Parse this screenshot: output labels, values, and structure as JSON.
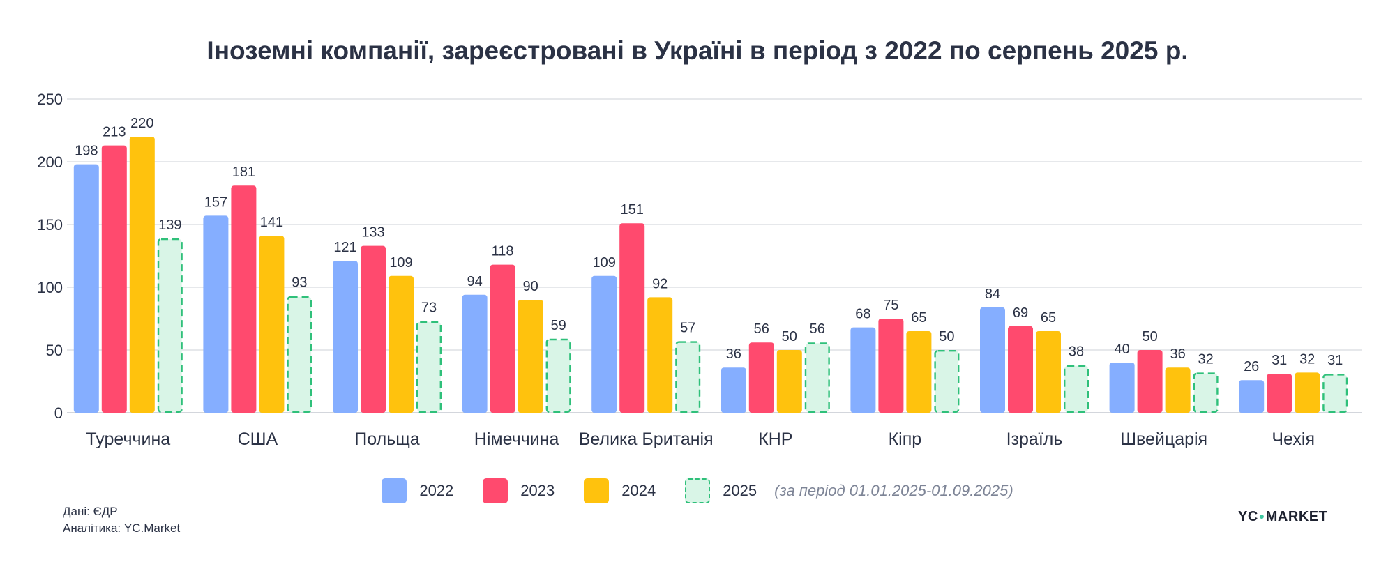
{
  "title": "Іноземні компанії, зареєстровані в Україні в період з 2022 по серпень 2025 р.",
  "source": {
    "data_line": "Дані: ЄДР",
    "analytics_line": "Аналітика: YC.Market"
  },
  "logo": {
    "left": "YC",
    "right": "MARKET"
  },
  "legend": {
    "items": [
      {
        "label": "2022",
        "color": "#85aeff",
        "dashed": false,
        "note": ""
      },
      {
        "label": "2023",
        "color": "#ff4a6e",
        "dashed": false,
        "note": ""
      },
      {
        "label": "2024",
        "color": "#ffc20d",
        "dashed": false,
        "note": ""
      },
      {
        "label": "2025",
        "color": "#d9f5e7",
        "border": "#2fc07a",
        "dashed": true,
        "note": "(за період 01.01.2025-01.09.2025)"
      }
    ]
  },
  "chart_data": {
    "type": "bar",
    "title": "Іноземні компанії, зареєстровані в Україні в період з 2022 по серпень 2025 р.",
    "xlabel": "",
    "ylabel": "",
    "ylim": [
      0,
      250
    ],
    "yticks": [
      0,
      50,
      100,
      150,
      200,
      250
    ],
    "grid": true,
    "legend_position": "bottom",
    "categories": [
      "Туреччина",
      "США",
      "Польща",
      "Німеччина",
      "Велика Британія",
      "КНР",
      "Кіпр",
      "Ізраїль",
      "Швейцарія",
      "Чехія"
    ],
    "series": [
      {
        "name": "2022",
        "color": "#85aeff",
        "values": [
          198,
          157,
          121,
          94,
          109,
          36,
          68,
          84,
          40,
          26
        ]
      },
      {
        "name": "2023",
        "color": "#ff4a6e",
        "values": [
          213,
          181,
          133,
          118,
          151,
          56,
          75,
          69,
          50,
          31
        ]
      },
      {
        "name": "2024",
        "color": "#ffc20d",
        "values": [
          220,
          141,
          109,
          90,
          92,
          50,
          65,
          65,
          36,
          32
        ]
      },
      {
        "name": "2025",
        "color": "#d9f5e7",
        "border": "#2fc07a",
        "dashed": true,
        "values": [
          139,
          93,
          73,
          59,
          57,
          56,
          50,
          38,
          32,
          31
        ]
      }
    ]
  }
}
